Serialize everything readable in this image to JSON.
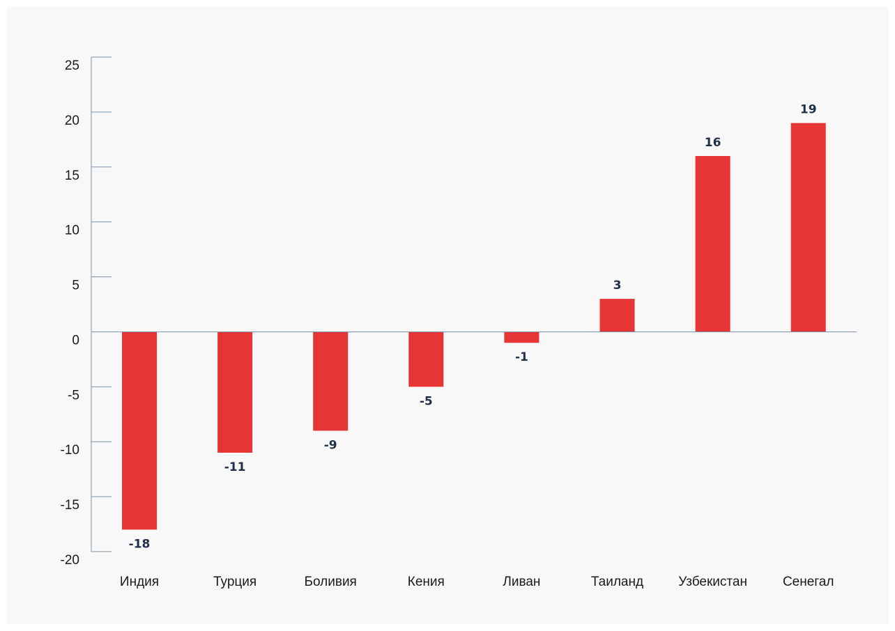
{
  "chart_data": {
    "type": "bar",
    "title": "",
    "xlabel": "",
    "ylabel": "",
    "categories": [
      "Индия",
      "Турция",
      "Боливия",
      "Кения",
      "Ливан",
      "Таиланд",
      "Узбекистан",
      "Сенегал"
    ],
    "values": [
      -18,
      -11,
      -9,
      -5,
      -1,
      3,
      16,
      19
    ],
    "value_labels": [
      "-18",
      "-11",
      "-9",
      "-5",
      "-1",
      "3",
      "16",
      "19"
    ],
    "ylim": [
      -20,
      25
    ],
    "yticks": [
      25,
      20,
      15,
      10,
      5,
      0,
      -5,
      -10,
      -15,
      -20
    ],
    "ytick_labels": [
      "25",
      "20",
      "15",
      "10",
      "5",
      "0",
      "-5",
      "-10",
      "-15",
      "-20"
    ],
    "grid": false,
    "legend": "none",
    "colors": {
      "bar": "#e53535",
      "axis": "#7b93ab",
      "value_label": "#1e3048",
      "background": "#f8f8f8"
    }
  }
}
